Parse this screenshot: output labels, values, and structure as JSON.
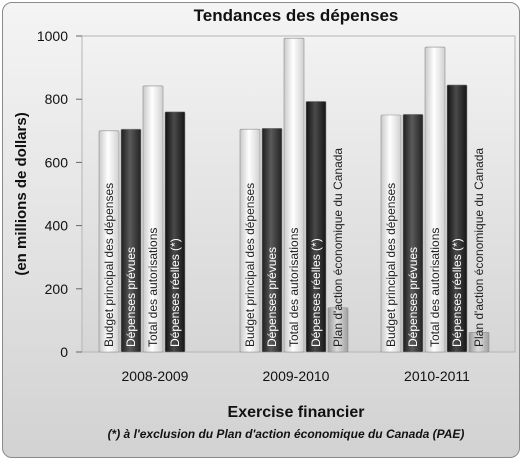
{
  "chart_data": {
    "type": "bar",
    "title": "Tendances des dépenses",
    "xlabel": "Exercise financier",
    "ylabel": "(en millions de dollars)",
    "ylim": [
      0,
      1000
    ],
    "yticks": [
      "0",
      "200",
      "400",
      "600",
      "800",
      "1000"
    ],
    "categories": [
      "2008-2009",
      "2009-2010",
      "2010-2011"
    ],
    "series": [
      {
        "name": "Budget principal des dépenses",
        "values": [
          700,
          705,
          750
        ],
        "color": "#e6e6e6"
      },
      {
        "name": "Dépenses prévues",
        "values": [
          705,
          708,
          752
        ],
        "color": "#3c3c3c"
      },
      {
        "name": "Total des autorisations",
        "values": [
          842,
          993,
          965
        ],
        "color": "#e6e6e6"
      },
      {
        "name": "Dépenses réelles (*)",
        "values": [
          760,
          793,
          845
        ],
        "color": "#2a2a2a"
      },
      {
        "name": "Plan d'action économique du Canada",
        "values": [
          0,
          140,
          62
        ],
        "color": "#c8c8c8"
      }
    ],
    "bar_labels": [
      [
        "Budget principal des dépenses",
        "Dépenses prévues",
        "Total des autorisations",
        "Dépenses réelles (*)"
      ],
      [
        "Budget principal des dépenses",
        "Dépenses prévues",
        "Total des autorisations",
        "Dépenses réelles (*)",
        "Plan d'action économique du Canada"
      ],
      [
        "Budget principal des dépenses",
        "Dépenses prévues",
        "Total des autorisations",
        "Dépenses réelles (*)",
        "Plan d'action économique du Canada"
      ]
    ],
    "footnote": "(*) à l'exclusion du Plan d'action économique du Canada (PAE)",
    "grid": false,
    "legend": "none"
  }
}
